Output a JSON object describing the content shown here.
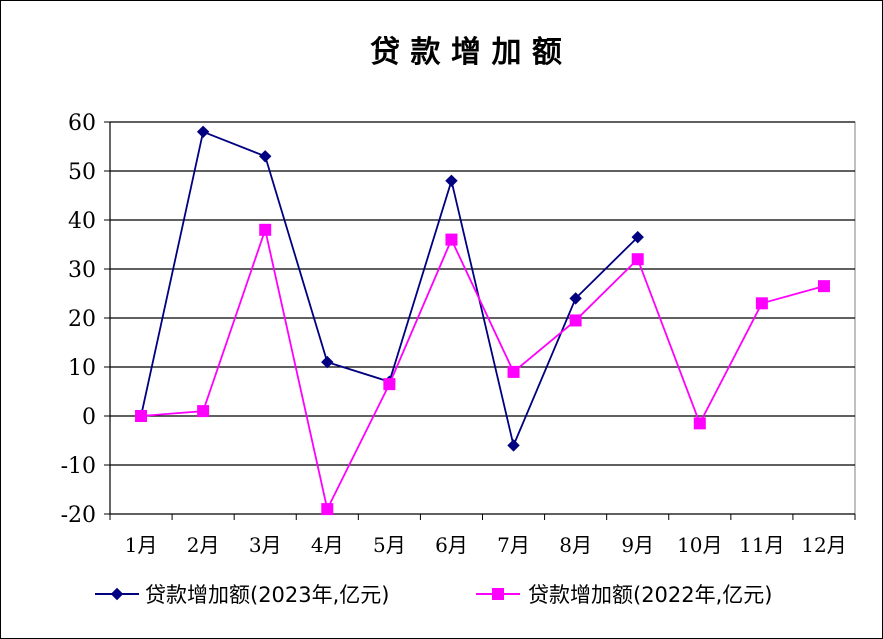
{
  "chart_data": {
    "type": "line",
    "title": "贷 款 增 加 额",
    "categories": [
      "1月",
      "2月",
      "3月",
      "4月",
      "5月",
      "6月",
      "7月",
      "8月",
      "9月",
      "10月",
      "11月",
      "12月"
    ],
    "ylim": [
      -20,
      60
    ],
    "yticks": [
      60,
      50,
      40,
      30,
      20,
      10,
      0,
      -10,
      -20
    ],
    "grid": true,
    "legend_position": "bottom",
    "series": [
      {
        "name": "贷款增加额(2023年,亿元)",
        "color": "#000080",
        "marker": "diamond",
        "values": [
          0,
          58,
          53,
          11,
          7,
          48,
          -6,
          24,
          36.5,
          null,
          null,
          null
        ]
      },
      {
        "name": "贷款增加额(2022年,亿元)",
        "color": "#ff00ff",
        "marker": "square",
        "values": [
          0,
          1,
          38,
          -19,
          6.5,
          36,
          9,
          19.5,
          32,
          -1.5,
          23,
          26.5
        ]
      }
    ]
  }
}
